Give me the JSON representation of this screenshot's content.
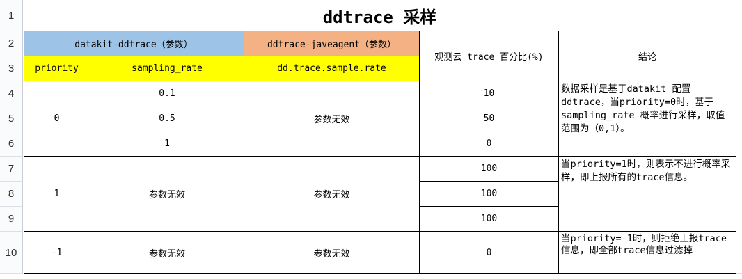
{
  "rows": [
    "1",
    "2",
    "3",
    "4",
    "5",
    "6",
    "7",
    "8",
    "9",
    "10"
  ],
  "title": "ddtrace 采样",
  "headers": {
    "datakit": "datakit-ddtrace（参数）",
    "javaagent": "ddtrace-javeagent（参数）",
    "percent": "观测云 trace 百分比(%)",
    "conclusion": "结论",
    "priority": "priority",
    "sampling_rate": "sampling_rate",
    "sample_rate": "dd.trace.sample.rate"
  },
  "colors": {
    "blue": "#9dc3e6",
    "orange": "#f4b183",
    "yellow": "#ffff00"
  },
  "group0": {
    "priority": "0",
    "rates": [
      "0.1",
      "0.5",
      "1"
    ],
    "javaagent": "参数无效",
    "percents": [
      "10",
      "50",
      "0"
    ],
    "conclusion": "数据采样是基于datakit 配置ddtrace，当priority=0时，基于sampling_rate 概率进行采样，取值范围为（0,1）。"
  },
  "group1": {
    "priority": "1",
    "rate": "参数无效",
    "javaagent": "参数无效",
    "percents": [
      "100",
      "100",
      "100"
    ],
    "conclusion": "当priority=1时，则表示不进行概率采样，即上报所有的trace信息。"
  },
  "group2": {
    "priority": "-1",
    "rate": "参数无效",
    "javaagent": "参数无效",
    "percent": "0",
    "conclusion": "当priority=-1时，则拒绝上报trace信息，即全部trace信息过滤掉"
  }
}
